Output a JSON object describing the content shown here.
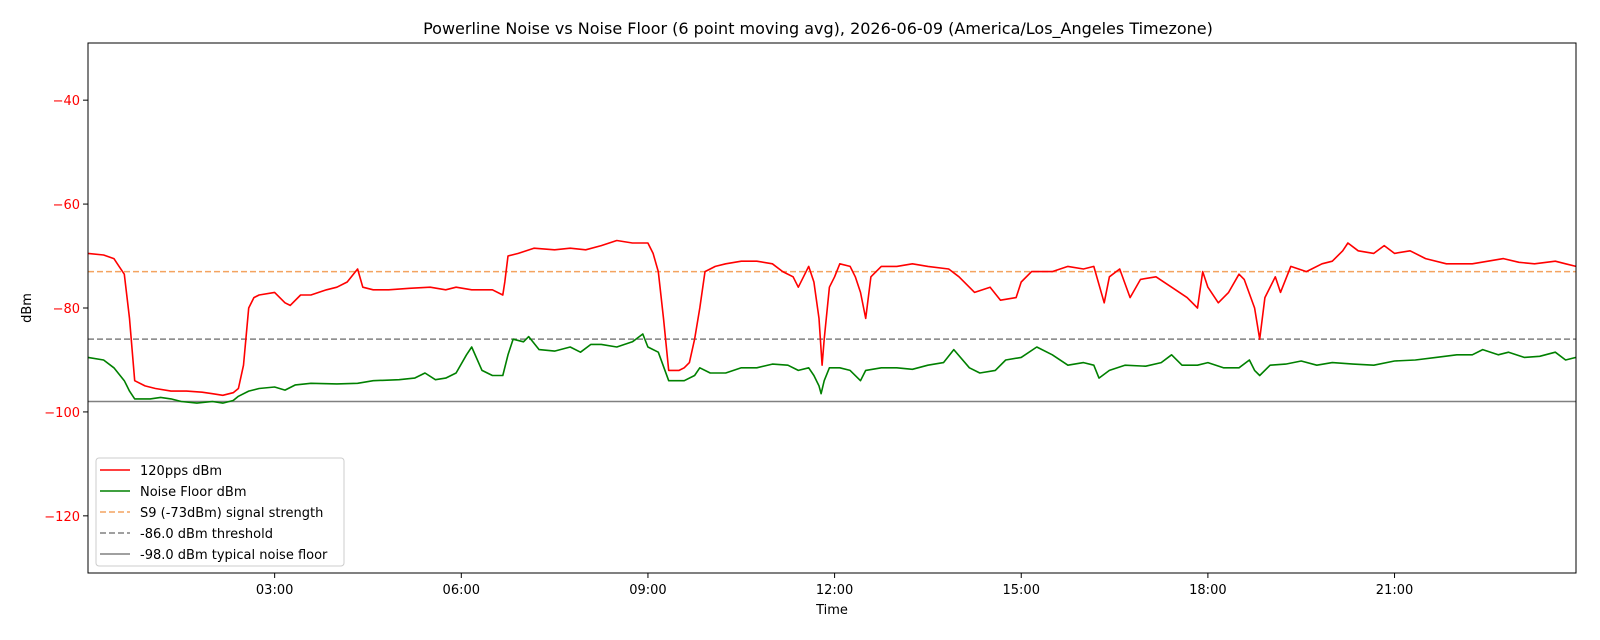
{
  "chart_data": {
    "type": "line",
    "title": "Powerline Noise vs Noise Floor (6 point moving avg), 2026-06-09 (America/Los_Angeles Timezone)",
    "xlabel": "Time",
    "ylabel": "dBm",
    "xlim": [
      "00:00",
      "23:55"
    ],
    "ylim": [
      -131,
      -29
    ],
    "x_ticks": [
      "03:00",
      "06:00",
      "09:00",
      "12:00",
      "15:00",
      "18:00",
      "21:00"
    ],
    "y_ticks": [
      -40,
      -60,
      -80,
      -100,
      -120
    ],
    "grid": false,
    "legend_position": "lower-left",
    "series": [
      {
        "name": "120pps dBm",
        "color": "#ff0000",
        "style": "solid",
        "points": [
          [
            "00:00",
            -69.5
          ],
          [
            "00:15",
            -69.8
          ],
          [
            "00:25",
            -70.5
          ],
          [
            "00:30",
            -72
          ],
          [
            "00:35",
            -73.5
          ],
          [
            "00:40",
            -82
          ],
          [
            "00:45",
            -94
          ],
          [
            "00:55",
            -95
          ],
          [
            "01:05",
            -95.5
          ],
          [
            "01:20",
            -96
          ],
          [
            "01:35",
            -96
          ],
          [
            "01:50",
            -96.2
          ],
          [
            "02:00",
            -96.5
          ],
          [
            "02:10",
            -96.8
          ],
          [
            "02:20",
            -96.3
          ],
          [
            "02:25",
            -95.5
          ],
          [
            "02:30",
            -91
          ],
          [
            "02:35",
            -80
          ],
          [
            "02:40",
            -78
          ],
          [
            "02:45",
            -77.5
          ],
          [
            "03:00",
            -77
          ],
          [
            "03:10",
            -79
          ],
          [
            "03:15",
            -79.5
          ],
          [
            "03:25",
            -77.5
          ],
          [
            "03:35",
            -77.5
          ],
          [
            "03:50",
            -76.5
          ],
          [
            "04:00",
            -76
          ],
          [
            "04:10",
            -75
          ],
          [
            "04:20",
            -72.5
          ],
          [
            "04:25",
            -76
          ],
          [
            "04:35",
            -76.5
          ],
          [
            "04:50",
            -76.5
          ],
          [
            "05:10",
            -76.2
          ],
          [
            "05:30",
            -76
          ],
          [
            "05:45",
            -76.5
          ],
          [
            "05:55",
            -76
          ],
          [
            "06:10",
            -76.5
          ],
          [
            "06:30",
            -76.5
          ],
          [
            "06:40",
            -77.5
          ],
          [
            "06:42",
            -75
          ],
          [
            "06:45",
            -70
          ],
          [
            "06:55",
            -69.5
          ],
          [
            "07:10",
            -68.5
          ],
          [
            "07:30",
            -68.8
          ],
          [
            "07:45",
            -68.5
          ],
          [
            "08:00",
            -68.8
          ],
          [
            "08:15",
            -68
          ],
          [
            "08:30",
            -67
          ],
          [
            "08:45",
            -67.5
          ],
          [
            "09:00",
            -67.5
          ],
          [
            "09:05",
            -69.5
          ],
          [
            "09:10",
            -73
          ],
          [
            "09:15",
            -82
          ],
          [
            "09:20",
            -92
          ],
          [
            "09:30",
            -92
          ],
          [
            "09:35",
            -91.5
          ],
          [
            "09:40",
            -90.5
          ],
          [
            "09:45",
            -86
          ],
          [
            "09:50",
            -80
          ],
          [
            "09:55",
            -73
          ],
          [
            "10:05",
            -72
          ],
          [
            "10:15",
            -71.5
          ],
          [
            "10:30",
            -71
          ],
          [
            "10:45",
            -71
          ],
          [
            "11:00",
            -71.5
          ],
          [
            "11:10",
            -73
          ],
          [
            "11:20",
            -74
          ],
          [
            "11:25",
            -76
          ],
          [
            "11:30",
            -74
          ],
          [
            "11:35",
            -72
          ],
          [
            "11:40",
            -75
          ],
          [
            "11:45",
            -82
          ],
          [
            "11:48",
            -91
          ],
          [
            "11:50",
            -86
          ],
          [
            "11:55",
            -76
          ],
          [
            "12:00",
            -74
          ],
          [
            "12:05",
            -71.5
          ],
          [
            "12:15",
            -72
          ],
          [
            "12:20",
            -74
          ],
          [
            "12:25",
            -77
          ],
          [
            "12:30",
            -82
          ],
          [
            "12:35",
            -74
          ],
          [
            "12:45",
            -72
          ],
          [
            "13:00",
            -72
          ],
          [
            "13:15",
            -71.5
          ],
          [
            "13:30",
            -72
          ],
          [
            "13:50",
            -72.5
          ],
          [
            "14:00",
            -74
          ],
          [
            "14:15",
            -77
          ],
          [
            "14:30",
            -76
          ],
          [
            "14:40",
            -78.5
          ],
          [
            "14:55",
            -78
          ],
          [
            "15:00",
            -75
          ],
          [
            "15:10",
            -73
          ],
          [
            "15:30",
            -73
          ],
          [
            "15:45",
            -72
          ],
          [
            "16:00",
            -72.5
          ],
          [
            "16:10",
            -72
          ],
          [
            "16:20",
            -79
          ],
          [
            "16:25",
            -74
          ],
          [
            "16:35",
            -72.5
          ],
          [
            "16:45",
            -78
          ],
          [
            "16:55",
            -74.5
          ],
          [
            "17:10",
            -74
          ],
          [
            "17:25",
            -76
          ],
          [
            "17:40",
            -78
          ],
          [
            "17:50",
            -80
          ],
          [
            "17:55",
            -73
          ],
          [
            "18:00",
            -76
          ],
          [
            "18:10",
            -79
          ],
          [
            "18:20",
            -77
          ],
          [
            "18:30",
            -73.5
          ],
          [
            "18:35",
            -74.5
          ],
          [
            "18:45",
            -80
          ],
          [
            "18:50",
            -86
          ],
          [
            "18:55",
            -78
          ],
          [
            "19:05",
            -74
          ],
          [
            "19:10",
            -77
          ],
          [
            "19:20",
            -72
          ],
          [
            "19:35",
            -73
          ],
          [
            "19:50",
            -71.5
          ],
          [
            "20:00",
            -71
          ],
          [
            "20:10",
            -69
          ],
          [
            "20:15",
            -67.5
          ],
          [
            "20:25",
            -69
          ],
          [
            "20:40",
            -69.5
          ],
          [
            "20:50",
            -68
          ],
          [
            "21:00",
            -69.5
          ],
          [
            "21:15",
            -69
          ],
          [
            "21:30",
            -70.5
          ],
          [
            "21:50",
            -71.5
          ],
          [
            "22:15",
            -71.5
          ],
          [
            "22:30",
            -71
          ],
          [
            "22:45",
            -70.5
          ],
          [
            "23:00",
            -71.2
          ],
          [
            "23:15",
            -71.5
          ],
          [
            "23:35",
            -71
          ],
          [
            "23:45",
            -71.5
          ],
          [
            "23:55",
            -72
          ]
        ]
      },
      {
        "name": "Noise Floor dBm",
        "color": "#008000",
        "style": "solid",
        "points": [
          [
            "00:00",
            -89.5
          ],
          [
            "00:15",
            -90
          ],
          [
            "00:25",
            -91.5
          ],
          [
            "00:35",
            -94
          ],
          [
            "00:40",
            -96
          ],
          [
            "00:45",
            -97.5
          ],
          [
            "01:00",
            -97.5
          ],
          [
            "01:10",
            -97.2
          ],
          [
            "01:20",
            -97.5
          ],
          [
            "01:30",
            -98
          ],
          [
            "01:45",
            -98.3
          ],
          [
            "02:00",
            -98
          ],
          [
            "02:10",
            -98.3
          ],
          [
            "02:20",
            -97.8
          ],
          [
            "02:25",
            -97
          ],
          [
            "02:35",
            -96
          ],
          [
            "02:45",
            -95.5
          ],
          [
            "03:00",
            -95.2
          ],
          [
            "03:10",
            -95.8
          ],
          [
            "03:20",
            -94.8
          ],
          [
            "03:35",
            -94.5
          ],
          [
            "04:00",
            -94.6
          ],
          [
            "04:20",
            -94.5
          ],
          [
            "04:35",
            -94
          ],
          [
            "05:00",
            -93.8
          ],
          [
            "05:15",
            -93.5
          ],
          [
            "05:25",
            -92.5
          ],
          [
            "05:35",
            -93.8
          ],
          [
            "05:45",
            -93.5
          ],
          [
            "05:55",
            -92.5
          ],
          [
            "06:05",
            -89
          ],
          [
            "06:10",
            -87.5
          ],
          [
            "06:20",
            -92
          ],
          [
            "06:30",
            -93
          ],
          [
            "06:40",
            -93
          ],
          [
            "06:45",
            -89
          ],
          [
            "06:50",
            -86
          ],
          [
            "07:00",
            -86.5
          ],
          [
            "07:05",
            -85.5
          ],
          [
            "07:15",
            -88
          ],
          [
            "07:30",
            -88.3
          ],
          [
            "07:45",
            -87.5
          ],
          [
            "07:55",
            -88.5
          ],
          [
            "08:05",
            -87
          ],
          [
            "08:15",
            -87
          ],
          [
            "08:30",
            -87.5
          ],
          [
            "08:45",
            -86.5
          ],
          [
            "08:55",
            -85
          ],
          [
            "09:00",
            -87.5
          ],
          [
            "09:10",
            -88.5
          ],
          [
            "09:20",
            -94
          ],
          [
            "09:35",
            -94
          ],
          [
            "09:45",
            -93
          ],
          [
            "09:50",
            -91.5
          ],
          [
            "10:00",
            -92.5
          ],
          [
            "10:15",
            -92.5
          ],
          [
            "10:30",
            -91.5
          ],
          [
            "10:45",
            -91.5
          ],
          [
            "11:00",
            -90.8
          ],
          [
            "11:15",
            -91
          ],
          [
            "11:25",
            -92
          ],
          [
            "11:35",
            -91.5
          ],
          [
            "11:40",
            -93
          ],
          [
            "11:45",
            -95
          ],
          [
            "11:47",
            -96.5
          ],
          [
            "11:50",
            -94
          ],
          [
            "11:55",
            -91.5
          ],
          [
            "12:05",
            -91.5
          ],
          [
            "12:15",
            -92
          ],
          [
            "12:25",
            -94
          ],
          [
            "12:30",
            -92
          ],
          [
            "12:45",
            -91.5
          ],
          [
            "13:00",
            -91.5
          ],
          [
            "13:15",
            -91.8
          ],
          [
            "13:30",
            -91
          ],
          [
            "13:45",
            -90.5
          ],
          [
            "13:55",
            -88
          ],
          [
            "14:10",
            -91.5
          ],
          [
            "14:20",
            -92.5
          ],
          [
            "14:35",
            -92
          ],
          [
            "14:45",
            -90
          ],
          [
            "15:00",
            -89.5
          ],
          [
            "15:15",
            -87.5
          ],
          [
            "15:30",
            -89
          ],
          [
            "15:45",
            -91
          ],
          [
            "16:00",
            -90.5
          ],
          [
            "16:10",
            -91
          ],
          [
            "16:15",
            -93.5
          ],
          [
            "16:25",
            -92
          ],
          [
            "16:40",
            -91
          ],
          [
            "17:00",
            -91.2
          ],
          [
            "17:15",
            -90.5
          ],
          [
            "17:25",
            -89
          ],
          [
            "17:35",
            -91
          ],
          [
            "17:50",
            -91
          ],
          [
            "18:00",
            -90.5
          ],
          [
            "18:15",
            -91.5
          ],
          [
            "18:30",
            -91.5
          ],
          [
            "18:40",
            -90
          ],
          [
            "18:45",
            -92
          ],
          [
            "18:50",
            -93
          ],
          [
            "19:00",
            -91
          ],
          [
            "19:15",
            -90.8
          ],
          [
            "19:30",
            -90.2
          ],
          [
            "19:45",
            -91
          ],
          [
            "20:00",
            -90.5
          ],
          [
            "20:20",
            -90.8
          ],
          [
            "20:40",
            -91
          ],
          [
            "21:00",
            -90.2
          ],
          [
            "21:20",
            -90
          ],
          [
            "21:40",
            -89.5
          ],
          [
            "22:00",
            -89
          ],
          [
            "22:15",
            -89
          ],
          [
            "22:25",
            -88
          ],
          [
            "22:40",
            -89
          ],
          [
            "22:50",
            -88.5
          ],
          [
            "23:05",
            -89.5
          ],
          [
            "23:20",
            -89.3
          ],
          [
            "23:35",
            -88.5
          ],
          [
            "23:45",
            -90
          ],
          [
            "23:55",
            -89.5
          ]
        ]
      },
      {
        "name": "S9 (-73dBm) signal strength",
        "color": "#f4a460",
        "style": "dashed",
        "constant": -73
      },
      {
        "name": "-86.0 dBm threshold",
        "color": "#808080",
        "style": "dashed",
        "constant": -86
      },
      {
        "name": "-98.0 dBm typical noise floor",
        "color": "#808080",
        "style": "solid",
        "constant": -98
      }
    ]
  }
}
